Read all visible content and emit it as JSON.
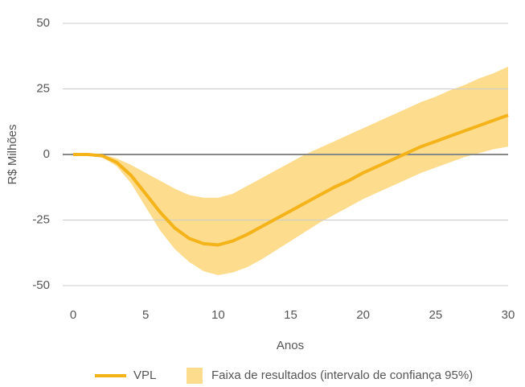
{
  "chart_data": {
    "type": "line",
    "x": [
      0,
      1,
      2,
      3,
      4,
      5,
      6,
      7,
      8,
      9,
      10,
      11,
      12,
      13,
      14,
      15,
      16,
      17,
      18,
      19,
      20,
      21,
      22,
      23,
      24,
      25,
      26,
      27,
      28,
      29,
      30
    ],
    "series": [
      {
        "name": "VPL",
        "color": "#f5b31a",
        "values": [
          0,
          0,
          -0.5,
          -3,
          -8,
          -15,
          -22,
          -28,
          -32,
          -34,
          -34.5,
          -33,
          -30.5,
          -27.5,
          -24.5,
          -21.5,
          -18.5,
          -15.5,
          -12.5,
          -10,
          -7,
          -4.5,
          -2,
          0.5,
          3,
          5,
          7,
          9,
          11,
          13,
          15
        ]
      },
      {
        "name": "Faixa de resultados (intervalo de confiança 95%)",
        "color": "#fddc8e",
        "upper": [
          0,
          0,
          0,
          -1.5,
          -4,
          -7,
          -10,
          -13,
          -15.5,
          -16.5,
          -16.5,
          -15,
          -12,
          -9,
          -6,
          -3,
          0,
          2.5,
          5,
          7.5,
          10,
          12.5,
          15,
          17.5,
          20,
          22,
          24.5,
          26.5,
          29,
          31,
          33.5
        ],
        "lower": [
          0,
          0,
          -1,
          -4.5,
          -11,
          -20,
          -29,
          -36,
          -41,
          -44.5,
          -46,
          -45,
          -43,
          -40,
          -36.5,
          -33,
          -29.5,
          -26,
          -23,
          -20,
          -17,
          -14.5,
          -12,
          -9.5,
          -7,
          -5,
          -3,
          -1,
          0.5,
          2,
          3
        ]
      }
    ],
    "xlabel": "Anos",
    "ylabel": "R$ Milhões",
    "xlim": [
      0,
      30
    ],
    "xticks": [
      0,
      5,
      10,
      15,
      20,
      25,
      30
    ],
    "ylim": [
      -50,
      50
    ],
    "yticks": [
      -50,
      -25,
      0,
      25,
      50
    ],
    "grid": true,
    "legend": "bottom"
  }
}
